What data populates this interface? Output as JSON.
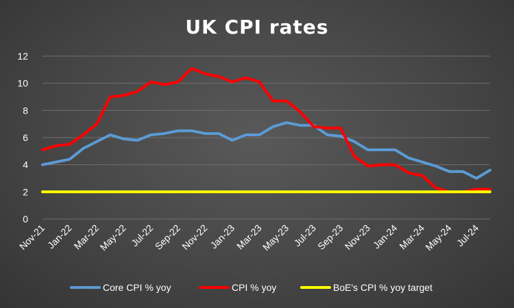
{
  "chart_data": {
    "type": "line",
    "title": "UK CPI rates",
    "xlabel": "",
    "ylabel": "",
    "ylim": [
      0,
      12
    ],
    "yticks": [
      "0",
      "2",
      "4",
      "6",
      "8",
      "10",
      "12"
    ],
    "grid": true,
    "legend_position": "bottom",
    "x": [
      "Nov-21",
      "Dec-21",
      "Jan-22",
      "Feb-22",
      "Mar-22",
      "Apr-22",
      "May-22",
      "Jun-22",
      "Jul-22",
      "Aug-22",
      "Sep-22",
      "Oct-22",
      "Nov-22",
      "Dec-22",
      "Jan-23",
      "Feb-23",
      "Mar-23",
      "Apr-23",
      "May-23",
      "Jun-23",
      "Jul-23",
      "Aug-23",
      "Sep-23",
      "Oct-23",
      "Nov-23",
      "Dec-23",
      "Jan-24",
      "Feb-24",
      "Mar-24",
      "Apr-24",
      "May-24",
      "Jun-24",
      "Jul-24",
      "Aug-24"
    ],
    "xtick_labels": [
      "Nov-21",
      "Jan-22",
      "Mar-22",
      "May-22",
      "Jul-22",
      "Sep-22",
      "Nov-22",
      "Jan-23",
      "Mar-23",
      "May-23",
      "Jul-23",
      "Sep-23",
      "Nov-23",
      "Jan-24",
      "Mar-24",
      "May-24",
      "Jul-24"
    ],
    "series": [
      {
        "name": "Core CPI % yoy",
        "color": "#5b9bd5",
        "values": [
          4.0,
          4.2,
          4.4,
          5.2,
          5.7,
          6.2,
          5.9,
          5.8,
          6.2,
          6.3,
          6.5,
          6.5,
          6.3,
          6.3,
          5.8,
          6.2,
          6.2,
          6.8,
          7.1,
          6.9,
          6.9,
          6.2,
          6.1,
          5.7,
          5.1,
          5.1,
          5.1,
          4.5,
          4.2,
          3.9,
          3.5,
          3.5,
          3.0,
          3.6
        ]
      },
      {
        "name": "CPI % yoy",
        "color": "#ff0000",
        "values": [
          5.1,
          5.4,
          5.5,
          6.2,
          7.0,
          9.0,
          9.1,
          9.4,
          10.1,
          9.9,
          10.1,
          11.1,
          10.7,
          10.5,
          10.1,
          10.4,
          10.1,
          8.7,
          8.7,
          7.9,
          6.8,
          6.7,
          6.7,
          4.6,
          3.9,
          4.0,
          4.0,
          3.4,
          3.2,
          2.3,
          2.0,
          2.0,
          2.2,
          2.2
        ]
      },
      {
        "name": "BoE's CPI % yoy target",
        "color": "#ffff00",
        "values": [
          2,
          2,
          2,
          2,
          2,
          2,
          2,
          2,
          2,
          2,
          2,
          2,
          2,
          2,
          2,
          2,
          2,
          2,
          2,
          2,
          2,
          2,
          2,
          2,
          2,
          2,
          2,
          2,
          2,
          2,
          2,
          2,
          2,
          2
        ]
      }
    ]
  }
}
